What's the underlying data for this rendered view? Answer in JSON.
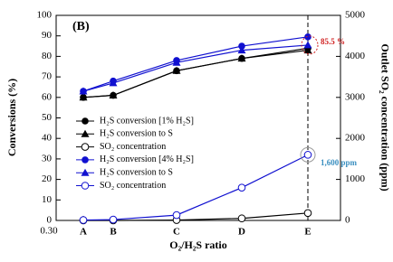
{
  "chart_data": {
    "type": "line",
    "panel_label": "(B)",
    "xlabel": "O₂/H₂S ratio",
    "ylabel": "Conversions (%)",
    "y2label": "Outlet SO₂ concentration (ppm)",
    "x_axis_start_label": "0.30",
    "categories": [
      "A",
      "B",
      "C",
      "D",
      "E"
    ],
    "ylim": [
      0,
      100
    ],
    "yticks": [
      0,
      10,
      20,
      30,
      40,
      50,
      60,
      70,
      80,
      90,
      100
    ],
    "y2lim": [
      0,
      5000
    ],
    "y2ticks": [
      0,
      1000,
      2000,
      3000,
      4000,
      5000
    ],
    "grid": false,
    "series": [
      {
        "name": "H₂S conversion [1% H₂S]",
        "color": "#000000",
        "marker": "circle",
        "values": [
          60,
          61,
          73,
          79,
          84
        ]
      },
      {
        "name": "H₂S conversion to S",
        "color": "#000000",
        "marker": "triangle",
        "values": [
          60,
          61,
          73,
          79,
          83
        ]
      },
      {
        "name": "SO₂ concentration",
        "color": "#000000",
        "marker": "open-circle",
        "axis": "y2",
        "values": [
          0,
          0,
          10,
          50,
          180
        ]
      },
      {
        "name": "H₂S conversion [4% H₂S]",
        "color": "#1010d0",
        "marker": "circle",
        "values": [
          63,
          68,
          78,
          85,
          89.5
        ]
      },
      {
        "name": "H₂S conversion to S",
        "color": "#1010d0",
        "marker": "triangle",
        "values": [
          63,
          67,
          77,
          83,
          85.5
        ]
      },
      {
        "name": "SO₂ concentration",
        "color": "#1010d0",
        "marker": "open-circle",
        "axis": "y2",
        "values": [
          10,
          20,
          130,
          800,
          1600
        ]
      }
    ],
    "annotations": [
      {
        "text": "85.5 %",
        "color": "#d02020"
      },
      {
        "text": "1,600 ppm",
        "color": "#3a8fc0"
      }
    ]
  }
}
